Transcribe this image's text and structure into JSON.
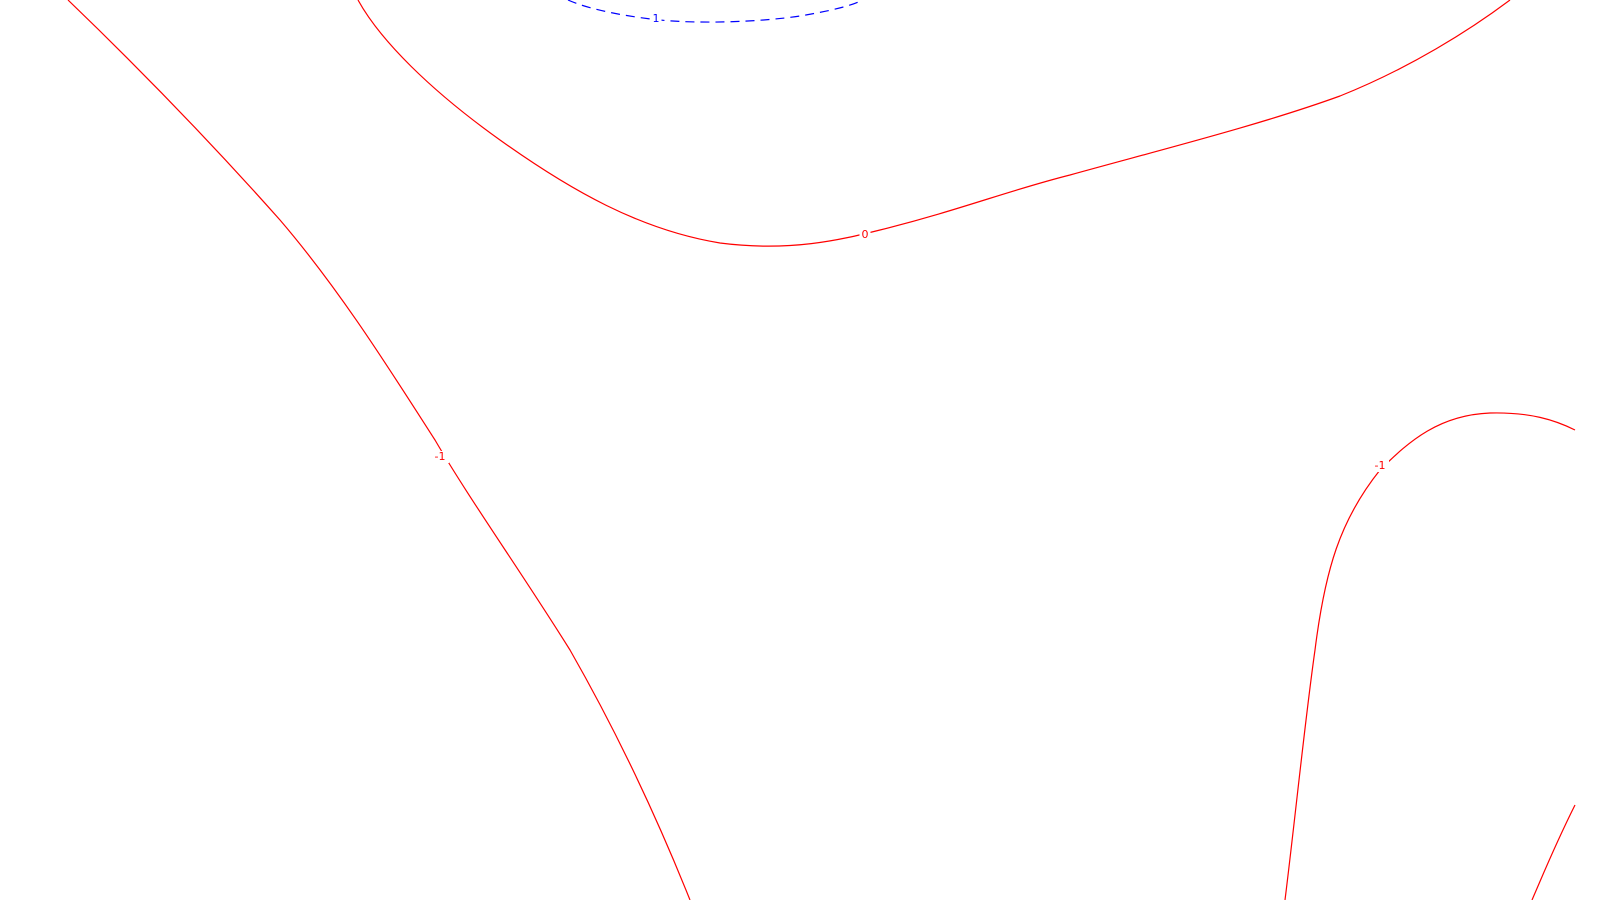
{
  "colors": {
    "background": "#ffffff",
    "positive": "#ff0000",
    "negative": "#0000ff"
  },
  "chart_data": {
    "type": "contour",
    "title": "",
    "xlabel": "",
    "ylabel": "",
    "grid": false,
    "legend": "none",
    "contours": [
      {
        "id": "contour-zero",
        "level": 0,
        "label": "0",
        "color": "#ff0000",
        "style": "solid"
      },
      {
        "id": "contour-minus-one-left",
        "level": -1,
        "label": "-1",
        "color": "#ff0000",
        "style": "solid"
      },
      {
        "id": "contour-minus-one-right",
        "level": -1,
        "label": "-1",
        "color": "#ff0000",
        "style": "solid"
      },
      {
        "id": "contour-minus-one-corner",
        "level": -1,
        "label": "",
        "color": "#ff0000",
        "style": "solid"
      },
      {
        "id": "contour-one-top",
        "level": 1,
        "label": "1",
        "color": "#0000ff",
        "style": "dashed"
      }
    ]
  }
}
